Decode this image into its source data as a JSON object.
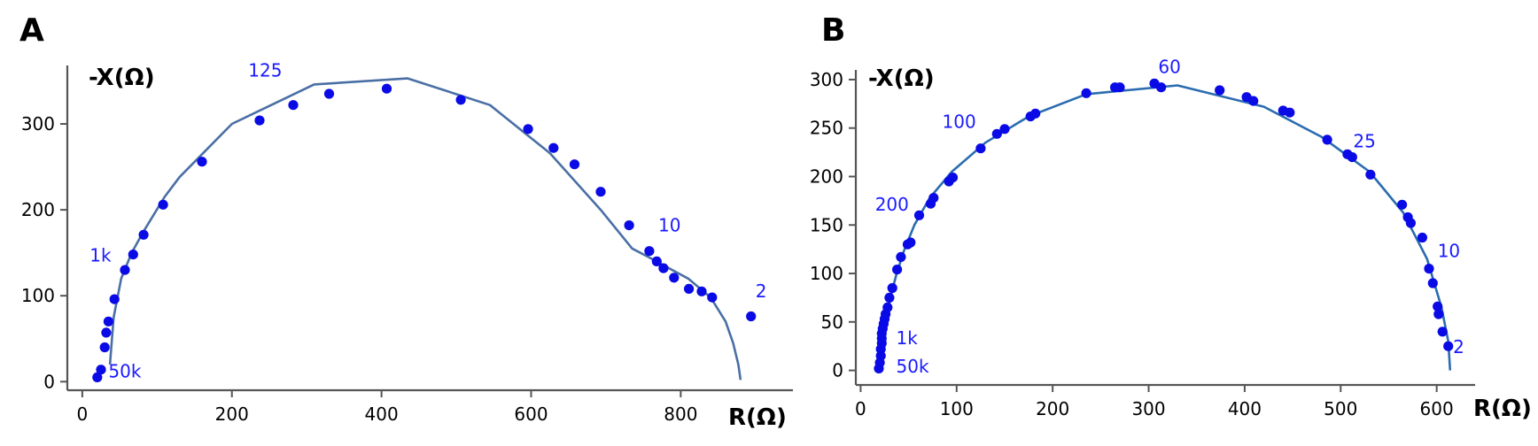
{
  "chart_data": [
    {
      "type": "scatter",
      "panel_label": "A",
      "xlabel": "R(Ω)",
      "ylabel": "-X(Ω)",
      "xlim": [
        -20,
        950
      ],
      "ylim": [
        -10,
        368
      ],
      "xticks": [
        0,
        200,
        400,
        600,
        800
      ],
      "yticks": [
        0,
        100,
        200,
        300
      ],
      "colors": {
        "points": "#0a0ae6",
        "curve": "#4a6fa5",
        "labels": "#1a1aff"
      },
      "series": [
        {
          "kind": "points",
          "x": [
            20,
            25,
            30,
            32,
            35,
            43,
            57,
            68,
            82,
            108,
            160,
            237,
            282,
            330,
            407,
            506,
            596,
            630,
            658,
            693,
            731,
            758,
            768,
            777,
            791,
            811,
            828,
            842,
            894
          ],
          "y": [
            5,
            14,
            40,
            57,
            70,
            96,
            130,
            148,
            171,
            206,
            256,
            304,
            322,
            335,
            341,
            328,
            294,
            272,
            253,
            221,
            182,
            152,
            140,
            132,
            121,
            108,
            105,
            98,
            76
          ]
        },
        {
          "kind": "fit",
          "x": [
            37,
            42,
            52,
            66,
            82,
            110,
            130,
            200,
            310,
            435,
            545,
            625,
            693,
            735,
            757,
            780,
            810,
            840,
            860,
            870,
            877,
            880
          ],
          "y": [
            20,
            75,
            120,
            150,
            175,
            215,
            238,
            300,
            346,
            353,
            322,
            266,
            200,
            155,
            145,
            134,
            120,
            98,
            70,
            45,
            20,
            2
          ]
        }
      ],
      "annotations": [
        {
          "text": "50k",
          "x": 35,
          "y": 5
        },
        {
          "text": "1k",
          "x": 10,
          "y": 140
        },
        {
          "text": "125",
          "x": 222,
          "y": 355
        },
        {
          "text": "10",
          "x": 770,
          "y": 175
        },
        {
          "text": "2",
          "x": 900,
          "y": 98
        }
      ]
    },
    {
      "type": "scatter",
      "panel_label": "B",
      "xlabel": "R(Ω)",
      "ylabel": "-X(Ω)",
      "xlim": [
        -5,
        640
      ],
      "ylim": [
        -15,
        310
      ],
      "xticks": [
        0,
        100,
        200,
        300,
        400,
        500,
        600
      ],
      "yticks": [
        0,
        50,
        100,
        150,
        200,
        250,
        300
      ],
      "colors": {
        "points": "#0a0ae6",
        "curve": "#2b6cb0",
        "labels": "#1a1aff"
      },
      "series": [
        {
          "kind": "points",
          "x": [
            19,
            20,
            21,
            21,
            22,
            22,
            22,
            23,
            24,
            25,
            26,
            28,
            30,
            33,
            38,
            42,
            49,
            52,
            61,
            73,
            76,
            92,
            96,
            125,
            142,
            150,
            177,
            182,
            235,
            265,
            270,
            306,
            313,
            374,
            402,
            409,
            440,
            447,
            486,
            507,
            512,
            531,
            564,
            570,
            573,
            585,
            592,
            596,
            601,
            602,
            606,
            612
          ],
          "y": [
            2,
            8,
            15,
            22,
            28,
            33,
            38,
            43,
            48,
            53,
            58,
            65,
            75,
            85,
            104,
            117,
            130,
            132,
            160,
            172,
            178,
            195,
            199,
            229,
            244,
            249,
            262,
            265,
            286,
            292,
            292,
            296,
            292,
            289,
            282,
            278,
            268,
            266,
            238,
            223,
            220,
            202,
            171,
            158,
            152,
            137,
            105,
            90,
            66,
            58,
            40,
            25
          ]
        },
        {
          "kind": "fit",
          "x": [
            19,
            20,
            22,
            24,
            27,
            31,
            37,
            45,
            56,
            72,
            95,
            130,
            175,
            235,
            330,
            420,
            480,
            530,
            565,
            590,
            605,
            612,
            614
          ],
          "y": [
            0,
            10,
            22,
            38,
            55,
            75,
            98,
            123,
            150,
            178,
            205,
            235,
            262,
            285,
            294,
            272,
            241,
            205,
            163,
            115,
            65,
            30,
            0
          ]
        }
      ],
      "annotations": [
        {
          "text": "50k",
          "x": 37,
          "y": -2
        },
        {
          "text": "1k",
          "x": 37,
          "y": 27
        },
        {
          "text": "200",
          "x": 15,
          "y": 165
        },
        {
          "text": "100",
          "x": 85,
          "y": 250
        },
        {
          "text": "60",
          "x": 310,
          "y": 307
        },
        {
          "text": "25",
          "x": 513,
          "y": 230
        },
        {
          "text": "10",
          "x": 601,
          "y": 117
        },
        {
          "text": "2",
          "x": 617,
          "y": 18
        }
      ]
    }
  ]
}
